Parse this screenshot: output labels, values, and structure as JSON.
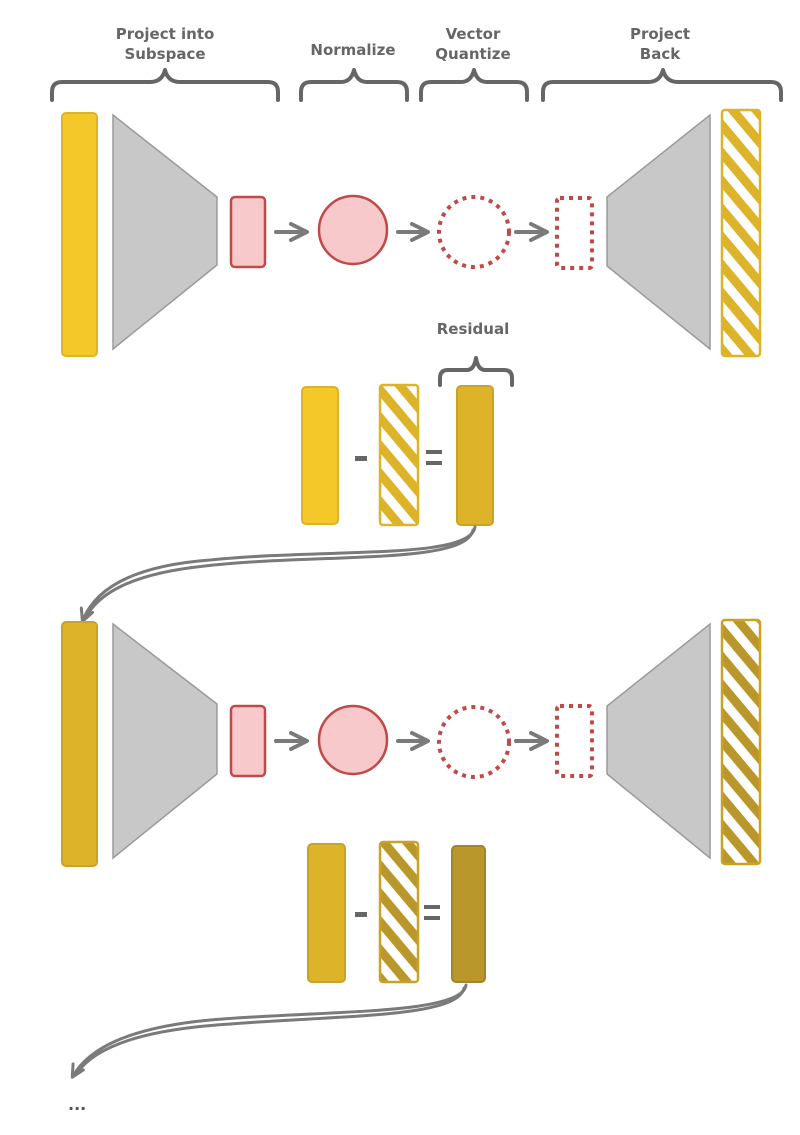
{
  "stages": [
    {
      "line1": "Project into",
      "line2": "Subspace"
    },
    {
      "line1": "Normalize",
      "line2": ""
    },
    {
      "line1": "Vector",
      "line2": "Quantize"
    },
    {
      "line1": "Project",
      "line2": "Back"
    }
  ],
  "residual_label": "Residual",
  "continuation": "...",
  "colors": {
    "yellow_1": "#F5C829",
    "yellow_2": "#DDB32A",
    "yellow_3": "#B9972A",
    "pink_fill": "#F8C9CA",
    "red_stroke": "#C0494A",
    "funnel_gray": "#C8C8C8",
    "arrow_gray": "#7A7A7A",
    "bracket_gray": "#666666"
  },
  "icons": [
    "minus-sign",
    "equals-sign",
    "arrow-right",
    "curved-arrow"
  ]
}
